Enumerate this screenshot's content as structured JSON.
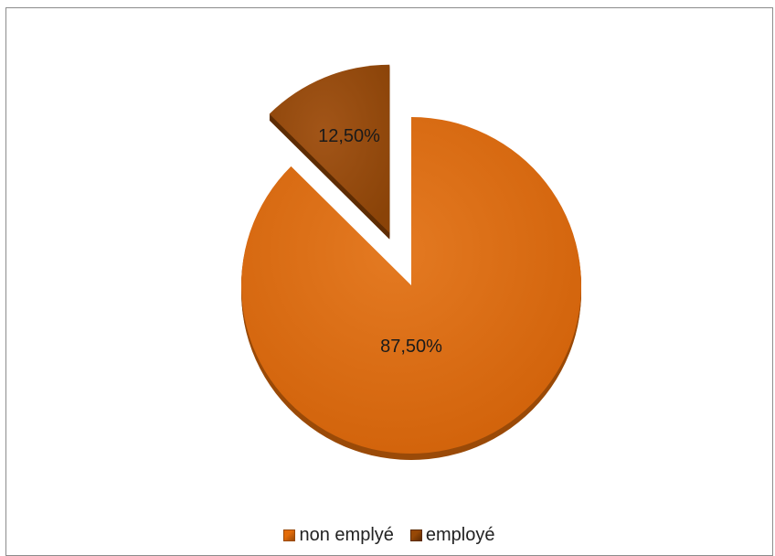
{
  "chart_data": {
    "type": "pie",
    "style": "3d-exploded",
    "categories": [
      "non emplyé",
      "employé"
    ],
    "values": [
      87.5,
      12.5
    ],
    "data_labels": [
      "87,50%",
      "12,50%"
    ],
    "colors": {
      "non emplyé": "#E36C0A",
      "employé": "#974806"
    },
    "title": "",
    "legend": {
      "position": "bottom",
      "entries": [
        "non emplyé",
        "employé"
      ]
    }
  }
}
